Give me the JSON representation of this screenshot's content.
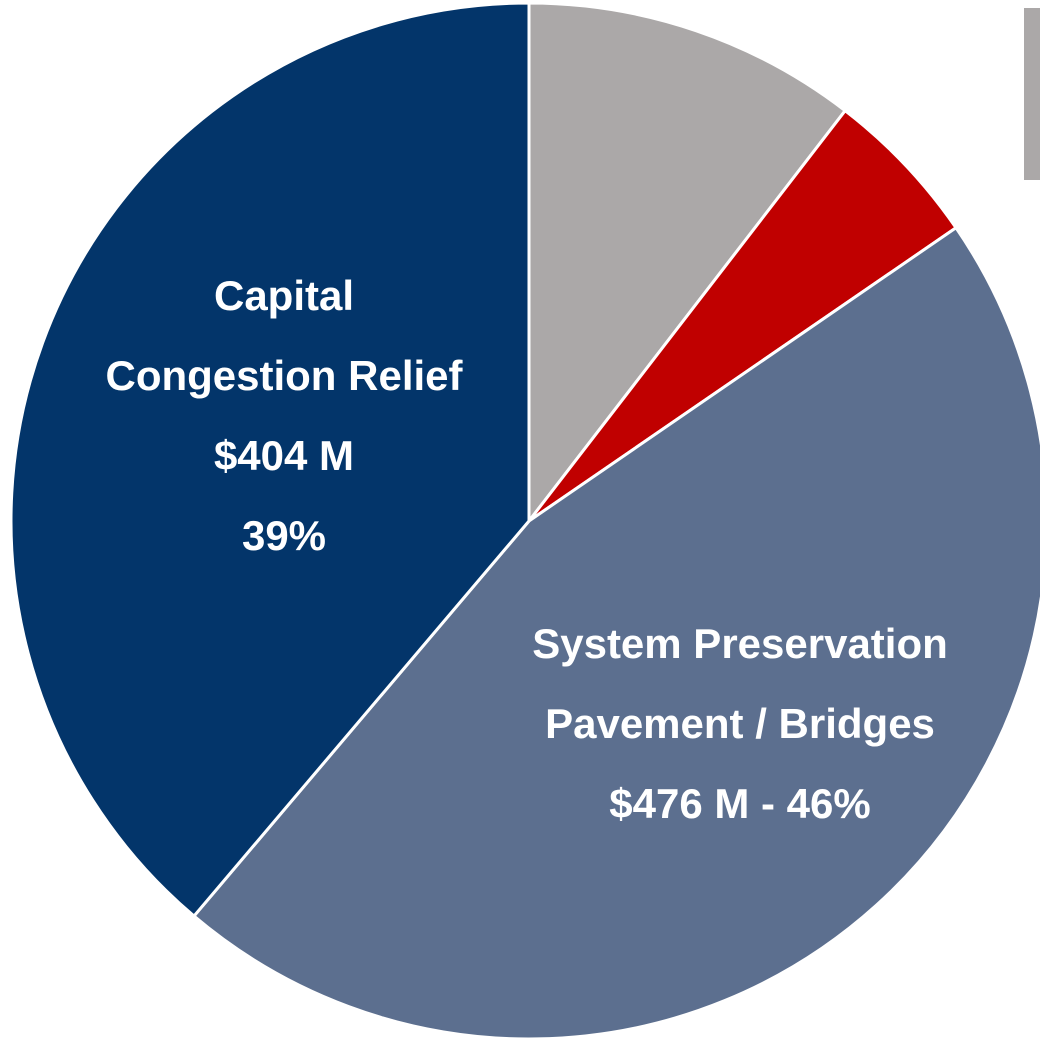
{
  "chart_data": {
    "type": "pie",
    "start_angle_deg": 0,
    "direction": "clockwise",
    "slices": [
      {
        "label_lines": [],
        "value": 10.5,
        "color": "#ABA8A8"
      },
      {
        "label_lines": [],
        "value": 5.0,
        "color": "#C00000"
      },
      {
        "label_lines": [
          "System Preservation",
          "Pavement / Bridges",
          "$476 M - 46%"
        ],
        "value": 46,
        "color": "#5C6F8F"
      },
      {
        "label_lines": [
          "Capital",
          "Congestion Relief",
          "$404 M",
          "39%"
        ],
        "value": 39,
        "color": "#03356A"
      }
    ],
    "legend_color": "#ABA8A8"
  }
}
